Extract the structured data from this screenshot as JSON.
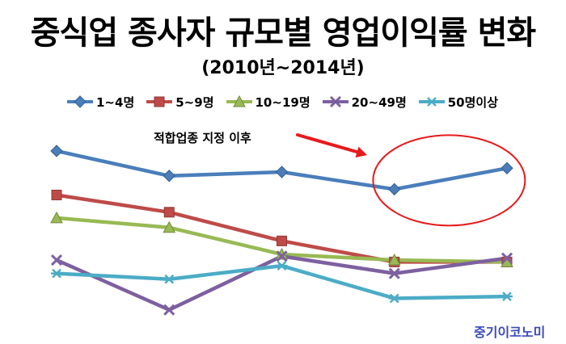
{
  "title": "중식업 종사자 규모별 영업이익률 변화",
  "subtitle": "(2010년~2014년)",
  "annotation": "적합업종 지정 이후",
  "brand": "중기이코노미",
  "colors": {
    "annotation_arrow": "#e8191c",
    "highlight_ellipse": "#e8191c",
    "brand_text": "#3b4bb8"
  },
  "chart_data": {
    "type": "line",
    "title": "중식업 종사자 규모별 영업이익률 변화",
    "subtitle": "(2010년~2014년)",
    "x": [
      2010,
      2011,
      2012,
      2013,
      2014
    ],
    "ylim": [
      0,
      100
    ],
    "axes_visible": false,
    "grid": false,
    "legend_position": "top",
    "series": [
      {
        "name": "1~4명",
        "color": "#4a7ebb",
        "marker": "diamond",
        "values": [
          92,
          79,
          81,
          72,
          83
        ]
      },
      {
        "name": "5~9명",
        "color": "#be4b48",
        "marker": "square",
        "values": [
          69,
          60,
          45,
          34,
          34
        ]
      },
      {
        "name": "10~19명",
        "color": "#98b954",
        "marker": "triangle",
        "values": [
          57,
          52,
          38,
          35,
          34
        ]
      },
      {
        "name": "20~49명",
        "color": "#7d60a0",
        "marker": "x",
        "values": [
          35,
          9,
          37,
          28,
          36
        ]
      },
      {
        "name": "50명이상",
        "color": "#4bacc6",
        "marker": "star",
        "values": [
          28,
          25,
          32,
          15,
          16
        ]
      }
    ],
    "annotations": [
      {
        "text": "적합업종 지정 이후",
        "target_series": "1~4명",
        "target_x": [
          2013,
          2014
        ],
        "shape": "ellipse with arrow"
      }
    ]
  }
}
